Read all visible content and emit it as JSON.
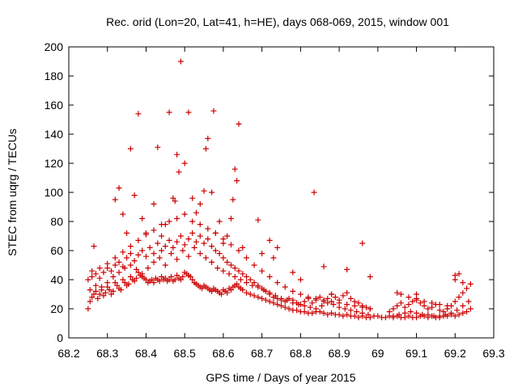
{
  "chart_data": {
    "type": "scatter",
    "title": "Rec. orid (Lon=20, Lat=41, h=HE), days 068-069, 2015, window 001",
    "xlabel": "GPS time / Days of year 2015",
    "ylabel": "STEC from uqrg / TECUs",
    "xlim": [
      68.2,
      69.3
    ],
    "ylim": [
      0,
      200
    ],
    "xticks": [
      "68.2",
      "68.3",
      "68.4",
      "68.5",
      "68.6",
      "68.7",
      "68.8",
      "68.9",
      "69",
      "69.1",
      "69.2",
      "69.3"
    ],
    "yticks": [
      "0",
      "20",
      "40",
      "60",
      "80",
      "100",
      "120",
      "140",
      "160",
      "180",
      "200"
    ],
    "grid": false,
    "legend": "none",
    "marker": "plus",
    "color": "#cc0000",
    "series": [
      {
        "x": [
          68.25,
          68.255,
          68.26,
          68.265,
          68.27,
          68.275,
          68.28,
          68.285,
          68.29,
          68.295,
          68.3,
          68.305,
          68.31,
          68.315,
          68.32,
          68.325,
          68.33,
          68.335,
          68.34,
          68.345,
          68.35,
          68.355,
          68.36,
          68.365,
          68.37,
          68.375,
          68.38,
          68.385,
          68.39,
          68.395,
          68.4,
          68.405,
          68.41,
          68.415,
          68.42,
          68.425,
          68.43,
          68.435,
          68.44,
          68.445,
          68.45,
          68.455,
          68.46,
          68.465,
          68.47,
          68.475,
          68.48,
          68.485,
          68.49,
          68.495,
          68.5,
          68.505,
          68.51,
          68.515,
          68.52,
          68.525,
          68.53,
          68.535,
          68.54,
          68.545,
          68.55,
          68.555,
          68.56,
          68.565,
          68.57,
          68.575,
          68.58,
          68.585,
          68.59,
          68.595,
          68.6,
          68.605,
          68.61,
          68.615,
          68.62,
          68.625,
          68.63,
          68.635,
          68.64,
          68.645,
          68.65,
          68.66,
          68.67,
          68.68,
          68.69,
          68.7,
          68.71,
          68.72,
          68.73,
          68.74,
          68.75,
          68.76,
          68.77,
          68.78,
          68.79,
          68.8,
          68.81,
          68.82,
          68.83,
          68.84,
          68.85,
          68.86,
          68.87,
          68.88,
          68.89,
          68.9,
          68.91,
          68.92,
          68.93,
          68.94,
          68.95,
          68.96,
          68.97,
          68.98,
          68.99,
          69.0,
          69.01,
          69.02,
          69.03,
          69.04,
          69.05,
          69.06,
          69.07,
          69.08,
          69.09,
          69.1,
          69.11,
          69.12,
          69.13,
          69.14,
          69.15,
          69.16,
          69.17,
          69.18,
          69.19,
          69.2,
          69.21,
          69.22,
          69.23,
          69.24
        ],
        "y": [
          20,
          25,
          28,
          30,
          32,
          27,
          30,
          33,
          29,
          31,
          35,
          33,
          30,
          32,
          38,
          36,
          34,
          33,
          40,
          38,
          36,
          37,
          42,
          40,
          39,
          41,
          45,
          43,
          42,
          41,
          40,
          38,
          39,
          40,
          38,
          41,
          40,
          39,
          42,
          40,
          41,
          39,
          40,
          42,
          39,
          40,
          43,
          41,
          40,
          42,
          45,
          44,
          43,
          42,
          40,
          38,
          37,
          36,
          35,
          34,
          36,
          35,
          34,
          33,
          32,
          34,
          33,
          32,
          31,
          30,
          33,
          32,
          31,
          34,
          33,
          35,
          36,
          37,
          35,
          34,
          33,
          31,
          30,
          29,
          28,
          27,
          26,
          25,
          24,
          23,
          22,
          21,
          20,
          19,
          19,
          18,
          18,
          17,
          17,
          18,
          18,
          17,
          16,
          17,
          16,
          16,
          15,
          16,
          15,
          15,
          14,
          15,
          14,
          14,
          15,
          15,
          14,
          14,
          15,
          14,
          15,
          14,
          14,
          15,
          14,
          14,
          15,
          15,
          14,
          15,
          14,
          14,
          15,
          15,
          16,
          15,
          16,
          17,
          18,
          20
        ]
      },
      {
        "x": [
          68.25,
          68.26,
          68.27,
          68.28,
          68.29,
          68.3,
          68.31,
          68.32,
          68.33,
          68.34,
          68.35,
          68.36,
          68.37,
          68.38,
          68.39,
          68.4,
          68.41,
          68.42,
          68.43,
          68.44,
          68.45,
          68.46,
          68.47,
          68.48,
          68.49,
          68.5,
          68.51,
          68.52,
          68.53,
          68.54,
          68.55,
          68.56,
          68.57,
          68.58,
          68.59,
          68.6,
          68.61,
          68.62,
          68.63,
          68.64,
          68.65,
          68.66,
          68.67,
          68.68,
          68.69,
          68.7,
          68.71,
          68.72,
          68.73,
          68.74,
          68.75,
          68.76,
          68.77,
          68.78,
          68.79,
          68.8,
          68.81,
          68.82,
          68.83,
          68.84,
          68.85,
          68.86,
          68.87,
          68.88,
          68.89,
          68.9,
          68.91,
          68.92,
          68.93,
          68.94,
          68.95,
          68.96,
          68.97,
          68.98,
          69.03,
          69.04,
          69.05,
          69.06,
          69.07,
          69.08,
          69.09,
          69.1,
          69.11,
          69.12,
          69.13,
          69.14,
          69.15,
          69.16,
          69.17,
          69.18,
          69.19,
          69.2,
          69.21,
          69.22,
          69.23,
          69.24
        ],
        "y": [
          40,
          42,
          44,
          41,
          45,
          48,
          46,
          50,
          52,
          49,
          55,
          58,
          53,
          57,
          60,
          56,
          62,
          58,
          65,
          60,
          63,
          67,
          62,
          66,
          70,
          64,
          68,
          72,
          66,
          70,
          65,
          68,
          63,
          60,
          58,
          55,
          52,
          50,
          48,
          46,
          44,
          42,
          40,
          38,
          36,
          34,
          32,
          30,
          28,
          27,
          26,
          25,
          27,
          26,
          24,
          23,
          25,
          27,
          24,
          26,
          28,
          25,
          27,
          30,
          28,
          26,
          29,
          31,
          27,
          25,
          24,
          22,
          21,
          20,
          18,
          20,
          22,
          24,
          21,
          23,
          25,
          27,
          24,
          22,
          20,
          21,
          23,
          19,
          18,
          20,
          22,
          25,
          28,
          31,
          34,
          37
        ]
      },
      {
        "x": [
          68.255,
          68.27,
          68.285,
          68.3,
          68.315,
          68.33,
          68.345,
          68.36,
          68.375,
          68.39,
          68.405,
          68.42,
          68.435,
          68.45,
          68.465,
          68.48,
          68.495,
          68.51,
          68.525,
          68.54,
          68.555,
          68.57,
          68.585,
          68.6,
          68.615,
          68.63,
          68.645,
          68.66,
          68.675,
          68.69,
          68.705,
          68.72,
          68.735,
          68.75,
          68.765,
          68.78,
          68.795,
          68.81,
          68.825,
          68.84,
          68.855,
          68.87,
          68.885,
          68.9,
          68.915,
          68.93,
          68.945,
          68.96,
          68.975,
          69.04,
          69.055,
          69.07,
          69.085,
          69.1,
          69.115,
          69.13,
          69.145,
          69.16,
          69.175,
          69.19,
          69.205,
          69.22,
          69.235
        ],
        "y": [
          33,
          36,
          35,
          38,
          42,
          45,
          48,
          50,
          47,
          44,
          48,
          52,
          55,
          50,
          58,
          54,
          60,
          56,
          62,
          58,
          55,
          52,
          48,
          46,
          44,
          42,
          40,
          38,
          36,
          35,
          33,
          31,
          29,
          27,
          26,
          24,
          23,
          22,
          21,
          20,
          22,
          24,
          23,
          21,
          20,
          19,
          18,
          17,
          16,
          15,
          16,
          17,
          18,
          17,
          16,
          16,
          15,
          15,
          16,
          17,
          19,
          22,
          25
        ]
      },
      {
        "x": [
          68.26,
          68.28,
          68.3,
          68.32,
          68.34,
          68.36,
          68.38,
          68.4,
          68.42,
          68.44,
          68.46,
          68.48,
          68.5,
          68.52,
          68.54,
          68.56,
          68.58,
          68.6,
          68.62,
          68.64,
          68.66,
          68.68,
          68.7,
          68.72,
          68.74,
          68.76,
          68.78,
          68.8,
          68.82,
          68.84,
          68.86,
          68.88,
          68.9,
          68.92,
          68.94,
          68.96,
          68.98,
          69.06,
          69.08,
          69.1,
          69.12,
          69.14,
          69.16,
          69.18,
          69.2,
          69.22
        ],
        "y": [
          46,
          48,
          51,
          55,
          59,
          63,
          67,
          71,
          74,
          78,
          80,
          82,
          85,
          80,
          78,
          75,
          72,
          68,
          64,
          60,
          55,
          50,
          46,
          42,
          38,
          35,
          32,
          30,
          28,
          27,
          26,
          25,
          24,
          23,
          22,
          21,
          20,
          30,
          28,
          26,
          25,
          24,
          23,
          22,
          40,
          38
        ]
      },
      {
        "x": [
          68.265,
          68.32,
          68.33,
          68.34,
          68.35,
          68.36,
          68.37,
          68.38,
          68.39,
          68.4,
          68.42,
          68.43,
          68.44,
          68.45,
          68.46,
          68.47,
          68.475,
          68.48,
          68.485,
          68.49,
          68.5,
          68.51,
          68.52,
          68.53,
          68.54,
          68.55,
          68.555,
          68.56,
          68.57,
          68.575,
          68.58,
          68.59,
          68.6,
          68.61,
          68.62,
          68.625,
          68.63,
          68.635,
          68.64,
          68.65,
          68.69,
          68.7,
          68.72,
          68.73,
          68.74,
          68.78,
          68.8,
          68.835,
          68.86,
          68.88,
          68.92,
          68.96,
          68.98,
          69.05,
          69.1,
          69.2,
          69.21
        ],
        "y": [
          63,
          95,
          103,
          85,
          72,
          130,
          98,
          154,
          82,
          72,
          92,
          131,
          70,
          78,
          155,
          96,
          94,
          126,
          114,
          190,
          120,
          155,
          96,
          86,
          92,
          101,
          130,
          137,
          100,
          156,
          72,
          80,
          65,
          70,
          82,
          95,
          116,
          108,
          147,
          62,
          81,
          58,
          67,
          55,
          62,
          45,
          40,
          100,
          49,
          30,
          47,
          65,
          42,
          31,
          30,
          43,
          44
        ]
      }
    ]
  }
}
